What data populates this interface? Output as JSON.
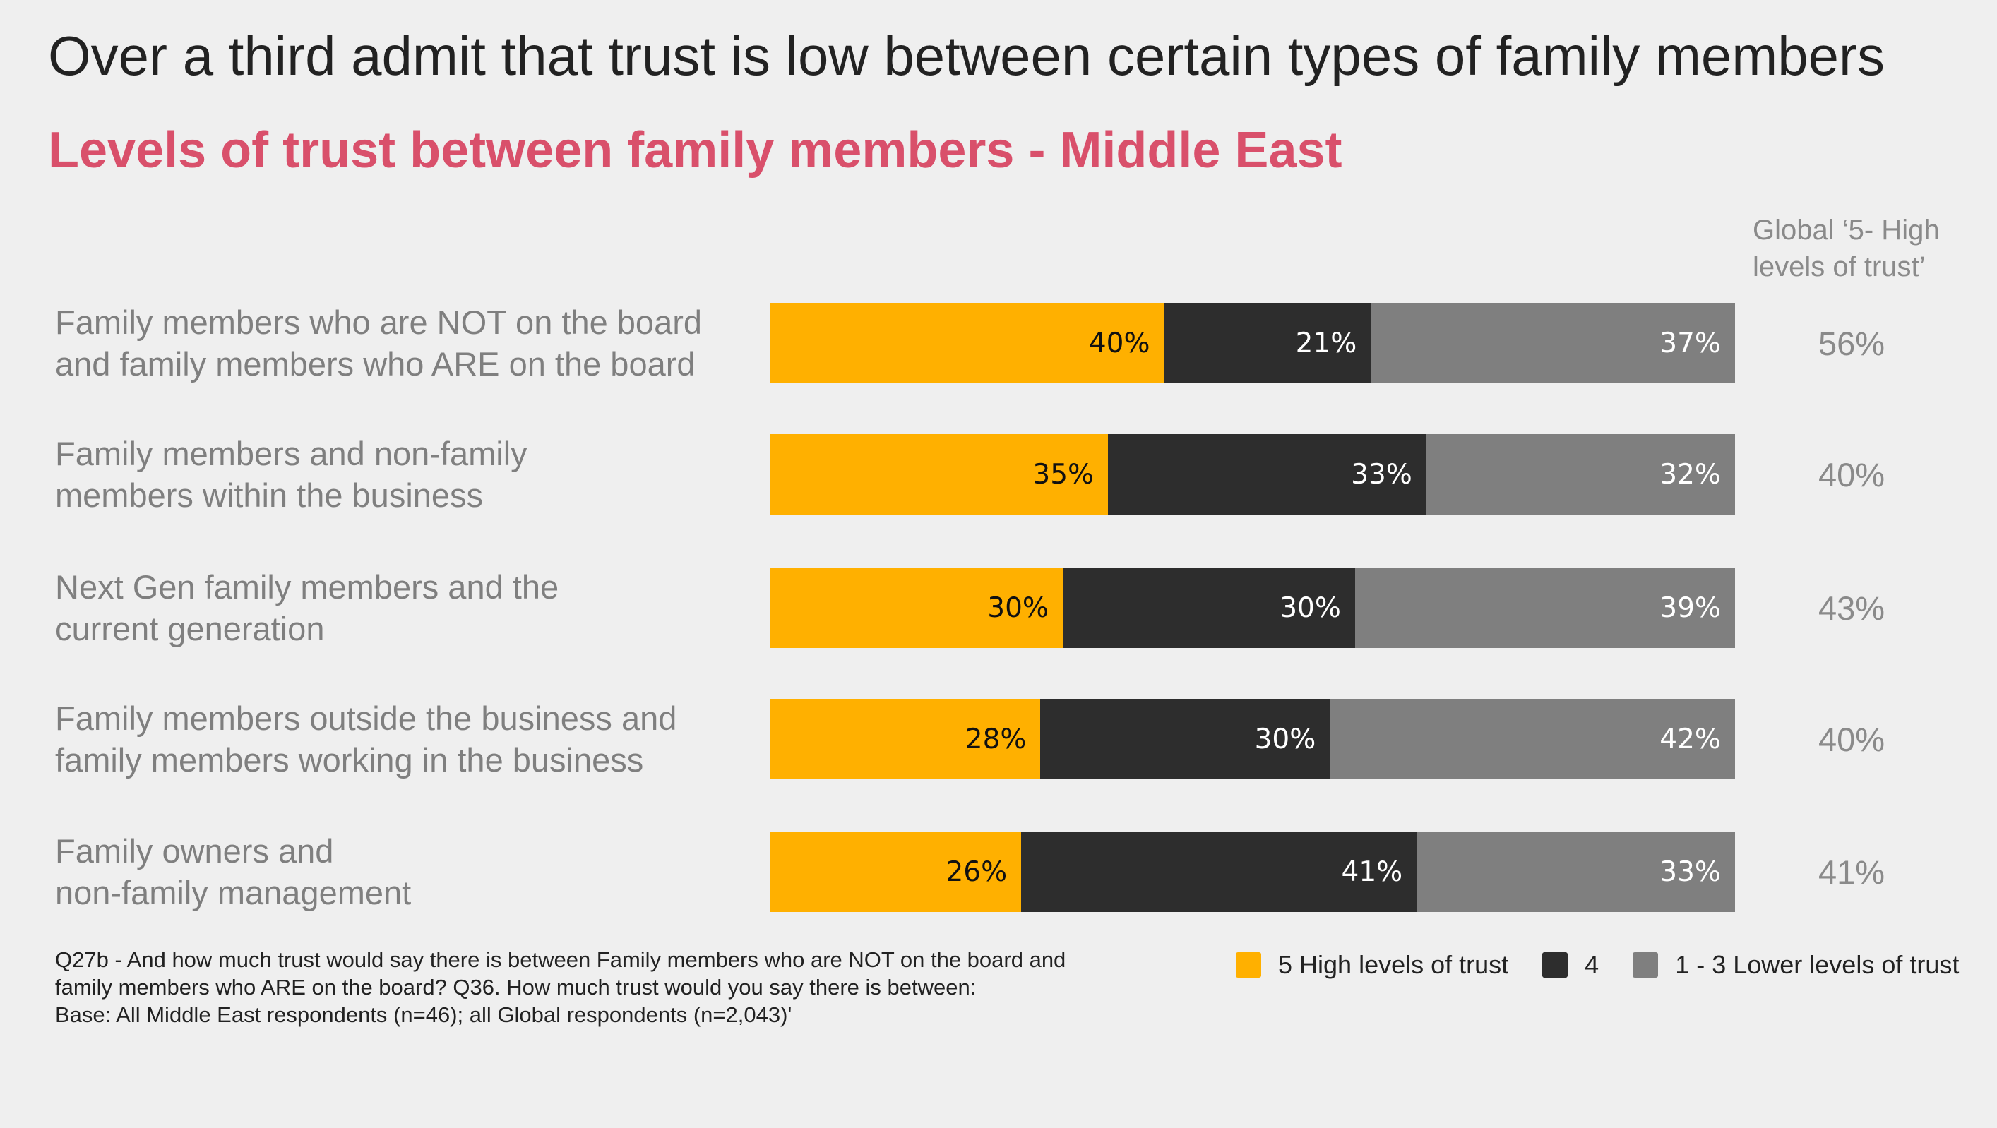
{
  "title": "Over a third admit that trust is low between certain types of family members",
  "subtitle": "Levels of trust between family members - Middle East",
  "global_header": "Global ‘5- High\nlevels of trust’",
  "footnote": [
    "Q27b - And how much trust would say there is between Family members who are NOT on the board and",
    "family members who ARE on the board? Q36. How much trust would you say there is between:",
    "Base: All Middle East respondents (n=46); all Global respondents (n=2,043)'"
  ],
  "chart_data": {
    "type": "bar",
    "orientation": "horizontal-stacked",
    "categories": [
      "Family members who are NOT on the board and family members who ARE on the board",
      "Family members and non-family members within the business",
      "Next Gen family members and the current generation",
      "Family members outside the business and family members working in the business",
      "Family owners and non-family management"
    ],
    "category_lines": [
      [
        "Family members who are NOT on the board",
        "and family members who ARE on the board"
      ],
      [
        "Family members and non-family",
        "members within the business"
      ],
      [
        "Next Gen family members and the",
        "current generation"
      ],
      [
        "Family members outside the business and",
        "family members working in the business"
      ],
      [
        "Family owners and",
        "non-family management"
      ]
    ],
    "series": [
      {
        "name": "5  High levels of trust",
        "color": "#ffb000",
        "text_color": "#111",
        "values": [
          40,
          35,
          30,
          28,
          26
        ]
      },
      {
        "name": "4",
        "color": "#2d2d2d",
        "text_color": "#fff",
        "values": [
          21,
          33,
          30,
          30,
          41
        ]
      },
      {
        "name": "1 - 3 Lower levels of trust",
        "color": "#7f7f7f",
        "text_color": "#fff",
        "values": [
          37,
          32,
          39,
          42,
          33
        ]
      }
    ],
    "global_high_trust": [
      56,
      40,
      43,
      40,
      41
    ],
    "unit": "%"
  }
}
